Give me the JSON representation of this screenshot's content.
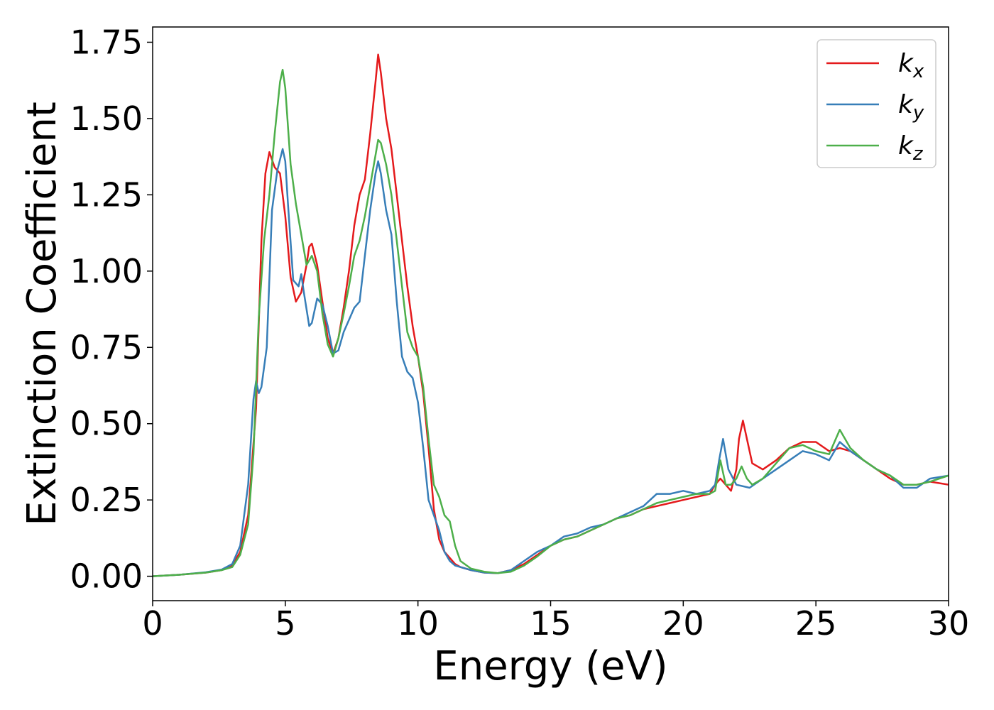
{
  "chart_data": {
    "type": "line",
    "xlabel": "Energy (eV)",
    "ylabel": "Extinction Coefficient",
    "xlim": [
      0,
      30
    ],
    "ylim": [
      -0.08,
      1.8
    ],
    "xticks": [
      0,
      5,
      10,
      15,
      20,
      25,
      30
    ],
    "xtick_labels": [
      "0",
      "5",
      "10",
      "15",
      "20",
      "25",
      "30"
    ],
    "yticks": [
      0.0,
      0.25,
      0.5,
      0.75,
      1.0,
      1.25,
      1.5,
      1.75
    ],
    "ytick_labels": [
      "0.00",
      "0.25",
      "0.50",
      "0.75",
      "1.00",
      "1.25",
      "1.50",
      "1.75"
    ],
    "grid": false,
    "legend_position": "top-right",
    "series": [
      {
        "name": "k",
        "subscript": "x",
        "color": "#e41a1c",
        "x": [
          0,
          1,
          2,
          2.6,
          3.0,
          3.3,
          3.6,
          3.9,
          4.1,
          4.25,
          4.4,
          4.6,
          4.8,
          5.0,
          5.2,
          5.4,
          5.6,
          5.8,
          5.9,
          6.0,
          6.2,
          6.4,
          6.6,
          6.8,
          7.0,
          7.2,
          7.4,
          7.6,
          7.8,
          8.0,
          8.2,
          8.4,
          8.5,
          8.6,
          8.8,
          9.0,
          9.2,
          9.4,
          9.6,
          9.8,
          10.0,
          10.2,
          10.4,
          10.6,
          10.8,
          11.0,
          11.2,
          11.4,
          11.6,
          12.0,
          12.5,
          13.0,
          13.5,
          14.0,
          14.5,
          15.0,
          15.5,
          16.0,
          16.5,
          17.0,
          17.5,
          18.0,
          18.5,
          19.0,
          19.5,
          20.0,
          20.5,
          21.0,
          21.2,
          21.4,
          21.6,
          21.8,
          22.0,
          22.1,
          22.25,
          22.4,
          22.6,
          23.0,
          23.5,
          24.0,
          24.5,
          25.0,
          25.5,
          25.9,
          26.3,
          26.8,
          27.3,
          27.8,
          28.3,
          28.8,
          29.3,
          30.0
        ],
        "values": [
          0.0,
          0.005,
          0.012,
          0.02,
          0.035,
          0.08,
          0.2,
          0.55,
          1.1,
          1.32,
          1.39,
          1.34,
          1.32,
          1.18,
          0.98,
          0.9,
          0.93,
          1.02,
          1.08,
          1.09,
          1.02,
          0.9,
          0.78,
          0.73,
          0.78,
          0.88,
          1.0,
          1.15,
          1.25,
          1.3,
          1.45,
          1.62,
          1.71,
          1.65,
          1.5,
          1.4,
          1.25,
          1.1,
          0.95,
          0.82,
          0.72,
          0.6,
          0.42,
          0.22,
          0.12,
          0.08,
          0.06,
          0.04,
          0.03,
          0.02,
          0.012,
          0.01,
          0.02,
          0.04,
          0.07,
          0.1,
          0.12,
          0.13,
          0.15,
          0.17,
          0.19,
          0.2,
          0.22,
          0.23,
          0.24,
          0.25,
          0.26,
          0.27,
          0.3,
          0.32,
          0.3,
          0.28,
          0.35,
          0.45,
          0.51,
          0.45,
          0.37,
          0.35,
          0.38,
          0.42,
          0.44,
          0.44,
          0.41,
          0.42,
          0.41,
          0.38,
          0.35,
          0.32,
          0.3,
          0.3,
          0.31,
          0.3
        ]
      },
      {
        "name": "k",
        "subscript": "y",
        "color": "#377eb8",
        "x": [
          0,
          1,
          2,
          2.6,
          3.0,
          3.3,
          3.6,
          3.8,
          3.9,
          4.0,
          4.1,
          4.3,
          4.5,
          4.7,
          4.9,
          5.0,
          5.1,
          5.3,
          5.5,
          5.6,
          5.7,
          5.9,
          6.0,
          6.2,
          6.4,
          6.6,
          6.8,
          7.0,
          7.2,
          7.4,
          7.6,
          7.8,
          8.0,
          8.2,
          8.4,
          8.5,
          8.6,
          8.8,
          9.0,
          9.2,
          9.4,
          9.6,
          9.8,
          10.0,
          10.2,
          10.4,
          10.6,
          10.8,
          11.0,
          11.2,
          11.4,
          11.6,
          12.0,
          12.5,
          13.0,
          13.5,
          14.0,
          14.5,
          15.0,
          15.5,
          16.0,
          16.5,
          17.0,
          17.5,
          18.0,
          18.5,
          19.0,
          19.5,
          20.0,
          20.5,
          21.0,
          21.2,
          21.35,
          21.5,
          21.7,
          22.0,
          22.5,
          23.0,
          23.5,
          24.0,
          24.5,
          25.0,
          25.5,
          25.9,
          26.3,
          26.8,
          27.3,
          27.8,
          28.3,
          28.8,
          29.3,
          30.0
        ],
        "values": [
          0.0,
          0.005,
          0.013,
          0.022,
          0.04,
          0.1,
          0.3,
          0.58,
          0.64,
          0.6,
          0.62,
          0.75,
          1.2,
          1.33,
          1.4,
          1.36,
          1.22,
          0.97,
          0.95,
          0.99,
          0.93,
          0.82,
          0.83,
          0.91,
          0.89,
          0.82,
          0.73,
          0.74,
          0.8,
          0.84,
          0.88,
          0.9,
          1.05,
          1.2,
          1.32,
          1.36,
          1.32,
          1.2,
          1.12,
          0.9,
          0.72,
          0.67,
          0.65,
          0.57,
          0.42,
          0.25,
          0.2,
          0.15,
          0.08,
          0.05,
          0.035,
          0.03,
          0.02,
          0.012,
          0.01,
          0.02,
          0.05,
          0.08,
          0.1,
          0.13,
          0.14,
          0.16,
          0.17,
          0.19,
          0.21,
          0.23,
          0.27,
          0.27,
          0.28,
          0.27,
          0.28,
          0.3,
          0.38,
          0.45,
          0.35,
          0.3,
          0.29,
          0.32,
          0.35,
          0.38,
          0.41,
          0.4,
          0.38,
          0.44,
          0.41,
          0.38,
          0.35,
          0.33,
          0.29,
          0.29,
          0.32,
          0.33
        ]
      },
      {
        "name": "k",
        "subscript": "z",
        "color": "#4daf4a",
        "x": [
          0,
          1,
          2,
          2.6,
          3.0,
          3.3,
          3.6,
          3.8,
          4.0,
          4.2,
          4.4,
          4.6,
          4.8,
          4.9,
          5.0,
          5.2,
          5.4,
          5.6,
          5.8,
          6.0,
          6.2,
          6.4,
          6.6,
          6.8,
          7.0,
          7.2,
          7.4,
          7.6,
          7.8,
          8.0,
          8.2,
          8.4,
          8.5,
          8.6,
          8.8,
          9.0,
          9.2,
          9.4,
          9.6,
          9.8,
          10.0,
          10.2,
          10.4,
          10.6,
          10.8,
          11.0,
          11.2,
          11.4,
          11.6,
          12.0,
          12.5,
          13.0,
          13.5,
          14.0,
          14.5,
          15.0,
          15.5,
          16.0,
          16.5,
          17.0,
          17.5,
          18.0,
          18.5,
          19.0,
          19.5,
          20.0,
          20.5,
          21.0,
          21.2,
          21.4,
          21.6,
          21.8,
          22.0,
          22.2,
          22.4,
          22.6,
          23.0,
          23.5,
          24.0,
          24.5,
          25.0,
          25.5,
          25.9,
          26.3,
          26.8,
          27.3,
          27.8,
          28.3,
          28.8,
          29.3,
          30.0
        ],
        "values": [
          0.0,
          0.005,
          0.012,
          0.02,
          0.03,
          0.07,
          0.17,
          0.4,
          0.85,
          1.1,
          1.25,
          1.45,
          1.62,
          1.66,
          1.6,
          1.35,
          1.22,
          1.12,
          1.02,
          1.05,
          1.0,
          0.86,
          0.76,
          0.72,
          0.78,
          0.86,
          0.95,
          1.05,
          1.1,
          1.18,
          1.28,
          1.38,
          1.43,
          1.42,
          1.35,
          1.25,
          1.1,
          0.95,
          0.8,
          0.75,
          0.72,
          0.62,
          0.45,
          0.3,
          0.26,
          0.2,
          0.18,
          0.1,
          0.05,
          0.025,
          0.015,
          0.01,
          0.015,
          0.035,
          0.065,
          0.1,
          0.12,
          0.13,
          0.15,
          0.17,
          0.19,
          0.2,
          0.22,
          0.24,
          0.25,
          0.26,
          0.27,
          0.27,
          0.28,
          0.38,
          0.3,
          0.3,
          0.32,
          0.36,
          0.32,
          0.3,
          0.32,
          0.37,
          0.42,
          0.43,
          0.41,
          0.4,
          0.48,
          0.42,
          0.38,
          0.35,
          0.33,
          0.3,
          0.3,
          0.31,
          0.33
        ]
      }
    ]
  }
}
